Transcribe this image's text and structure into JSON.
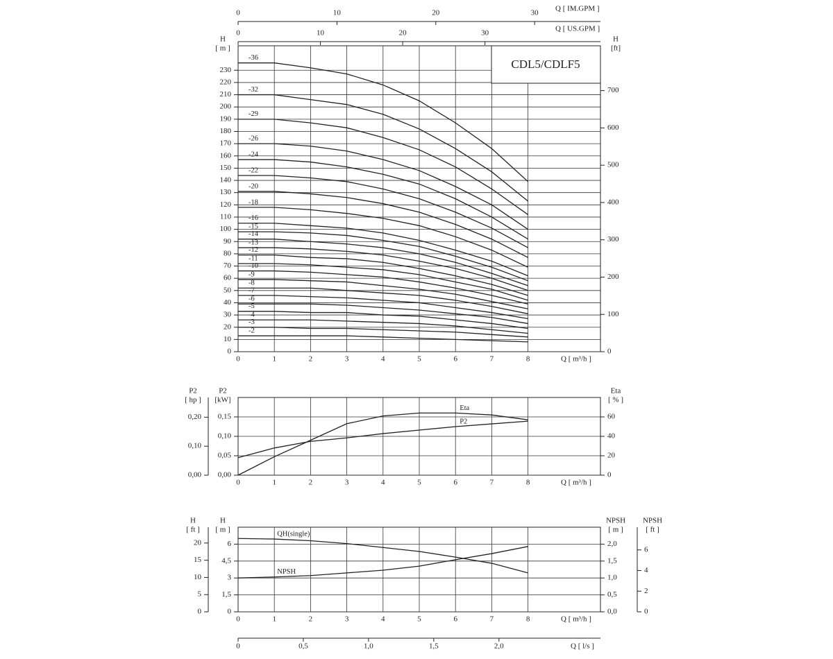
{
  "chart_data": [
    {
      "type": "line",
      "title": "CDL5/CDLF5",
      "color": "#222222",
      "grid": true,
      "x": [
        0,
        1,
        2,
        3,
        4,
        5,
        6,
        7,
        8
      ],
      "xlim": [
        0,
        10
      ],
      "xticks": [
        0,
        1,
        2,
        3,
        4,
        5,
        6,
        7,
        8
      ],
      "xlabel": "Q  [ m³/h ]",
      "ylim": [
        0,
        250
      ],
      "yticks": [
        0,
        10,
        20,
        30,
        40,
        50,
        60,
        70,
        80,
        90,
        100,
        110,
        120,
        130,
        140,
        150,
        160,
        170,
        180,
        190,
        200,
        210,
        220,
        230
      ],
      "ylabel": "H",
      "yunit": "[ m ]",
      "y2lim": [
        0,
        820.2
      ],
      "y2ticks": [
        0,
        100,
        200,
        300,
        400,
        500,
        600,
        700
      ],
      "y2label": "H",
      "y2unit": "[ft]",
      "top_axes": [
        {
          "label": "Q  [ IM.GPM ]",
          "lim": [
            0,
            36.66
          ],
          "ticks": [
            0,
            10,
            20,
            30
          ]
        },
        {
          "label": "Q  [ US.GPM ]",
          "lim": [
            0,
            44.03
          ],
          "ticks": [
            0,
            10,
            20,
            30
          ]
        }
      ],
      "series": [
        {
          "name": "-36",
          "values": [
            236,
            236,
            232,
            227,
            218,
            205,
            187,
            166,
            139
          ]
        },
        {
          "name": "-32",
          "values": [
            210,
            210,
            206,
            202,
            194,
            182,
            166,
            147,
            123
          ]
        },
        {
          "name": "-29",
          "values": [
            190,
            190,
            187,
            183,
            175,
            165,
            151,
            133,
            112
          ]
        },
        {
          "name": "-26",
          "values": [
            170,
            170,
            168,
            164,
            157,
            148,
            135,
            120,
            100
          ]
        },
        {
          "name": "-24",
          "values": [
            157,
            157,
            155,
            151,
            145,
            137,
            125,
            110,
            92
          ]
        },
        {
          "name": "-22",
          "values": [
            144,
            144,
            142,
            139,
            133,
            125,
            114,
            101,
            85
          ]
        },
        {
          "name": "-20",
          "values": [
            131,
            131,
            129,
            126,
            121,
            114,
            104,
            92,
            77
          ]
        },
        {
          "name": "-18",
          "values": [
            118,
            118,
            116,
            113,
            109,
            103,
            94,
            83,
            69
          ]
        },
        {
          "name": "-16",
          "values": [
            105,
            105,
            103,
            101,
            97,
            91,
            83,
            74,
            62
          ]
        },
        {
          "name": "-15",
          "values": [
            98,
            98,
            97,
            95,
            91,
            86,
            78,
            69,
            58
          ]
        },
        {
          "name": "-14",
          "values": [
            92,
            92,
            90,
            88,
            85,
            80,
            73,
            64,
            54
          ]
        },
        {
          "name": "-13",
          "values": [
            85,
            85,
            84,
            82,
            79,
            74,
            68,
            60,
            50
          ]
        },
        {
          "name": "-12",
          "values": [
            79,
            79,
            77,
            76,
            73,
            68,
            62,
            55,
            46
          ]
        },
        {
          "name": "-11",
          "values": [
            72,
            72,
            71,
            69,
            67,
            63,
            57,
            51,
            42
          ]
        },
        {
          "name": "-10",
          "values": [
            66,
            66,
            65,
            63,
            61,
            57,
            52,
            46,
            39
          ]
        },
        {
          "name": "-9",
          "values": [
            59,
            59,
            58,
            57,
            54,
            51,
            47,
            41,
            35
          ]
        },
        {
          "name": "-8",
          "values": [
            52,
            52,
            52,
            50,
            48,
            46,
            42,
            37,
            31
          ]
        },
        {
          "name": "-7",
          "values": [
            46,
            46,
            45,
            44,
            42,
            40,
            36,
            32,
            27
          ]
        },
        {
          "name": "-6",
          "values": [
            39,
            39,
            39,
            38,
            36,
            34,
            31,
            28,
            23
          ]
        },
        {
          "name": "-5",
          "values": [
            33,
            33,
            32,
            32,
            30,
            29,
            26,
            23,
            19
          ]
        },
        {
          "name": "-4",
          "values": [
            26,
            26,
            26,
            25,
            24,
            23,
            21,
            18,
            15
          ]
        },
        {
          "name": "-3",
          "values": [
            20,
            20,
            19,
            19,
            18,
            17,
            16,
            14,
            12
          ]
        },
        {
          "name": "-2",
          "values": [
            13,
            13,
            13,
            13,
            12,
            11,
            10,
            9,
            8
          ]
        }
      ]
    },
    {
      "type": "line",
      "color": "#222222",
      "grid": true,
      "x": [
        0,
        1,
        2,
        3,
        4,
        5,
        6,
        7,
        8
      ],
      "xlim": [
        0,
        10
      ],
      "xticks": [
        0,
        1,
        2,
        3,
        4,
        5,
        6,
        7,
        8
      ],
      "xlabel": "Q  [ m³/h ]",
      "ylim": [
        0,
        0.2
      ],
      "yticks": [
        {
          "value": 0,
          "label": "0,00"
        },
        {
          "value": 0.05,
          "label": "0,05"
        },
        {
          "value": 0.1,
          "label": "0,10"
        },
        {
          "value": 0.15,
          "label": "0,15"
        }
      ],
      "ylabel": "P2",
      "yunit": "[kW]",
      "y3lim": [
        0,
        0.268
      ],
      "y3ticks": [
        {
          "value": 0,
          "label": "0,00"
        },
        {
          "value": 0.1,
          "label": "0,10"
        },
        {
          "value": 0.2,
          "label": "0,20"
        }
      ],
      "y3label": "P2",
      "y3unit": "[ hp ]",
      "y2lim": [
        0,
        80
      ],
      "y2ticks": [
        0,
        20,
        40,
        60
      ],
      "y2label": "Eta",
      "y2unit": "[ % ]",
      "series": [
        {
          "name": "Eta",
          "axis": "y2",
          "values": [
            0,
            19,
            36,
            53,
            61,
            64,
            64,
            62,
            57
          ]
        },
        {
          "name": "P2",
          "values": [
            0.045,
            0.07,
            0.087,
            0.096,
            0.107,
            0.116,
            0.125,
            0.132,
            0.139
          ]
        }
      ]
    },
    {
      "type": "line",
      "color": "#222222",
      "grid": true,
      "x": [
        0,
        1,
        2,
        3,
        4,
        5,
        6,
        7,
        8
      ],
      "xlim": [
        0,
        10
      ],
      "xticks": [
        0,
        1,
        2,
        3,
        4,
        5,
        6,
        7,
        8
      ],
      "xlabel": "Q  [ m³/h ]",
      "ylim": [
        0,
        7.5
      ],
      "yticks": [
        0,
        {
          "value": 1.5,
          "label": "1,5"
        },
        3,
        {
          "value": 4.5,
          "label": "4,5"
        },
        6
      ],
      "ylabel": "H",
      "yunit": "[ m ]",
      "y3lim": [
        0,
        24.6
      ],
      "y3ticks": [
        0,
        5,
        10,
        15,
        20
      ],
      "y3label": "H",
      "y3unit": "[ ft ]",
      "y2lim": [
        0,
        2.5
      ],
      "y2ticks": [
        {
          "value": 0,
          "label": "0,0"
        },
        {
          "value": 0.5,
          "label": "0,5"
        },
        {
          "value": 1,
          "label": "1,0"
        },
        {
          "value": 1.5,
          "label": "1,5"
        },
        {
          "value": 2,
          "label": "2,0"
        }
      ],
      "y2label": "NPSH",
      "y2unit": "[ m ]",
      "y4lim": [
        0,
        8.2
      ],
      "y4ticks": [
        0,
        2,
        4,
        6
      ],
      "y4label": "NPSH",
      "y4unit": "[ ft ]",
      "bottom_axis": {
        "label": "Q  [ l/s ]",
        "lim": [
          0,
          2.778
        ],
        "ticks": [
          0,
          {
            "value": 0.5,
            "label": "0,5"
          },
          {
            "value": 1,
            "label": "1,0"
          },
          {
            "value": 1.5,
            "label": "1,5"
          },
          {
            "value": 2,
            "label": "2,0"
          }
        ]
      },
      "series": [
        {
          "name": "QH(single)",
          "values": [
            6.5,
            6.45,
            6.3,
            6.05,
            5.7,
            5.35,
            4.85,
            4.3,
            3.45
          ]
        },
        {
          "name": "NPSH",
          "axis": "y2",
          "values": [
            1.0,
            1.03,
            1.07,
            1.15,
            1.23,
            1.35,
            1.54,
            1.72,
            1.93
          ]
        }
      ]
    }
  ]
}
